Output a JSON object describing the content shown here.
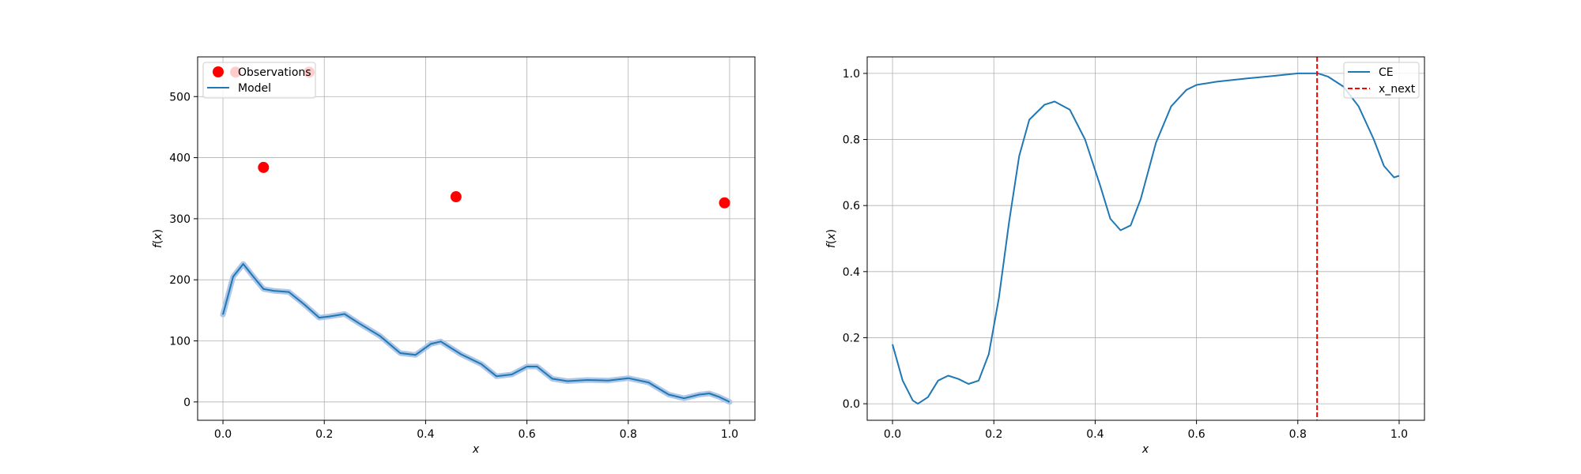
{
  "chart_data": [
    {
      "type": "line",
      "xlabel": "x",
      "ylabel": "f(x)",
      "xlim": [
        -0.05,
        1.05
      ],
      "ylim": [
        -30,
        565
      ],
      "xticks": [
        0.0,
        0.2,
        0.4,
        0.6,
        0.8,
        1.0
      ],
      "xtick_labels": [
        "0.0",
        "0.2",
        "0.4",
        "0.6",
        "0.8",
        "1.0"
      ],
      "yticks": [
        0,
        100,
        200,
        300,
        400,
        500
      ],
      "ytick_labels": [
        "0",
        "100",
        "200",
        "300",
        "400",
        "500"
      ],
      "grid": true,
      "legend": {
        "placement": "top-left",
        "entries": [
          "Observations",
          "Model"
        ]
      },
      "series": [
        {
          "name": "Observations",
          "kind": "scatter",
          "color": "#ff0000",
          "x": [
            0.025,
            0.08,
            0.17,
            0.46,
            0.99
          ],
          "y": [
            540,
            384,
            540,
            336,
            326
          ]
        },
        {
          "name": "Model",
          "kind": "line",
          "color": "#1f77b4",
          "band_color": "#aec7e8",
          "x": [
            0.0,
            0.02,
            0.04,
            0.06,
            0.08,
            0.1,
            0.13,
            0.16,
            0.19,
            0.21,
            0.24,
            0.27,
            0.31,
            0.35,
            0.38,
            0.41,
            0.43,
            0.47,
            0.51,
            0.54,
            0.57,
            0.6,
            0.62,
            0.65,
            0.68,
            0.72,
            0.76,
            0.8,
            0.84,
            0.88,
            0.91,
            0.94,
            0.96,
            0.98,
            1.0
          ],
          "y": [
            143,
            205,
            226,
            205,
            185,
            182,
            180,
            160,
            138,
            140,
            144,
            128,
            108,
            80,
            77,
            95,
            99,
            78,
            62,
            42,
            45,
            58,
            58,
            38,
            34,
            36,
            35,
            39,
            32,
            12,
            6,
            12,
            14,
            8,
            0
          ]
        }
      ]
    },
    {
      "type": "line",
      "xlabel": "x",
      "ylabel": "f(x)",
      "xlim": [
        -0.05,
        1.05
      ],
      "ylim": [
        -0.05,
        1.05
      ],
      "xticks": [
        0.0,
        0.2,
        0.4,
        0.6,
        0.8,
        1.0
      ],
      "xtick_labels": [
        "0.0",
        "0.2",
        "0.4",
        "0.6",
        "0.8",
        "1.0"
      ],
      "yticks": [
        0.0,
        0.2,
        0.4,
        0.6,
        0.8,
        1.0
      ],
      "ytick_labels": [
        "0.0",
        "0.2",
        "0.4",
        "0.6",
        "0.8",
        "1.0"
      ],
      "grid": true,
      "legend": {
        "placement": "top-right",
        "entries": [
          "CE",
          "x_next"
        ]
      },
      "series": [
        {
          "name": "CE",
          "kind": "line",
          "color": "#1f77b4",
          "x": [
            0.0,
            0.02,
            0.04,
            0.05,
            0.07,
            0.09,
            0.11,
            0.13,
            0.15,
            0.17,
            0.19,
            0.21,
            0.23,
            0.25,
            0.27,
            0.3,
            0.32,
            0.35,
            0.38,
            0.41,
            0.43,
            0.45,
            0.47,
            0.49,
            0.52,
            0.55,
            0.58,
            0.6,
            0.64,
            0.7,
            0.75,
            0.8,
            0.84,
            0.86,
            0.89,
            0.92,
            0.95,
            0.97,
            0.99,
            1.0
          ],
          "y": [
            0.18,
            0.07,
            0.01,
            0.0,
            0.02,
            0.07,
            0.085,
            0.075,
            0.06,
            0.07,
            0.15,
            0.32,
            0.55,
            0.75,
            0.86,
            0.905,
            0.915,
            0.89,
            0.8,
            0.66,
            0.56,
            0.525,
            0.54,
            0.62,
            0.79,
            0.9,
            0.95,
            0.965,
            0.975,
            0.985,
            0.992,
            1.0,
            1.0,
            0.99,
            0.96,
            0.9,
            0.8,
            0.72,
            0.685,
            0.69
          ]
        },
        {
          "name": "x_next",
          "kind": "vline",
          "color": "#ff0000",
          "x": 0.838
        }
      ]
    }
  ]
}
